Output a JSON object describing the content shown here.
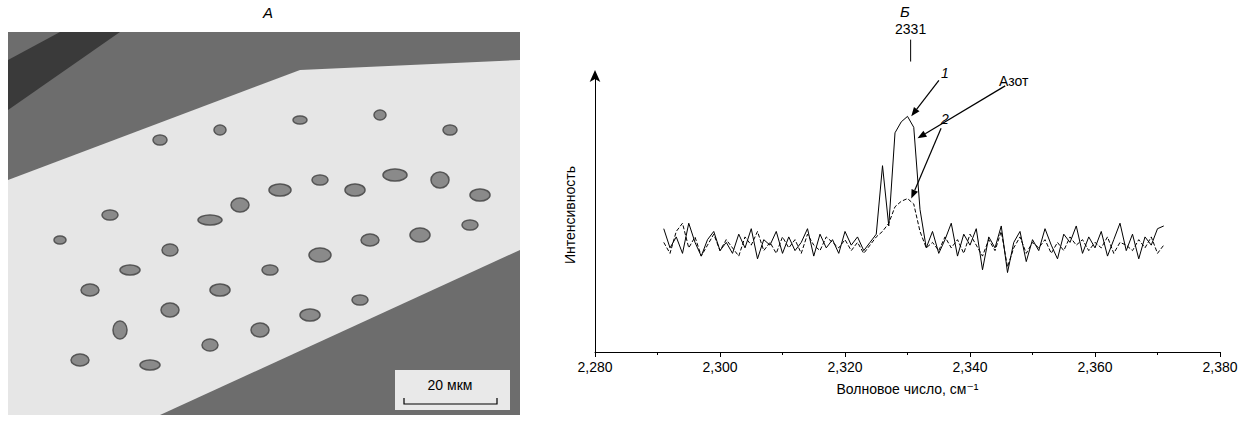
{
  "panel_a": {
    "letter": "А",
    "scale_bar": "20 мкм"
  },
  "chart_data": {
    "type": "line",
    "letter": "Б",
    "x_label": "Волновое число, см⁻¹",
    "y_label": "Интенсивность",
    "xlim": [
      2280,
      2380
    ],
    "xticks": [
      2280,
      2300,
      2320,
      2340,
      2360,
      2380
    ],
    "ylim": [
      0,
      100
    ],
    "tick_labels": "x",
    "grid": false,
    "x": [
      2291,
      2292,
      2293,
      2294,
      2295,
      2296,
      2297,
      2298,
      2299,
      2300,
      2301,
      2302,
      2303,
      2304,
      2305,
      2306,
      2307,
      2308,
      2309,
      2310,
      2311,
      2312,
      2313,
      2314,
      2315,
      2316,
      2317,
      2318,
      2319,
      2320,
      2321,
      2322,
      2323,
      2324,
      2325,
      2326,
      2327,
      2328,
      2329,
      2330,
      2331,
      2332,
      2333,
      2334,
      2335,
      2336,
      2337,
      2338,
      2339,
      2340,
      2341,
      2342,
      2343,
      2344,
      2345,
      2346,
      2347,
      2348,
      2349,
      2350,
      2351,
      2352,
      2353,
      2354,
      2355,
      2356,
      2357,
      2358,
      2359,
      2360,
      2361,
      2362,
      2363,
      2364,
      2365,
      2366,
      2367,
      2368,
      2369,
      2370,
      2371
    ],
    "series": [
      {
        "name": "1",
        "color": "#000000",
        "line_style": "solid",
        "values": [
          45,
          38,
          42,
          36,
          47,
          40,
          35,
          41,
          44,
          37,
          40,
          36,
          43,
          38,
          45,
          34,
          41,
          39,
          44,
          36,
          42,
          37,
          40,
          45,
          35,
          43,
          38,
          41,
          36,
          44,
          39,
          42,
          37,
          40,
          43,
          68,
          46,
          80,
          84,
          86,
          82,
          52,
          38,
          44,
          36,
          41,
          47,
          35,
          43,
          39,
          45,
          30,
          42,
          38,
          46,
          29,
          40,
          44,
          33,
          41,
          37,
          45,
          39,
          34,
          43,
          40,
          46,
          36,
          42,
          38,
          44,
          35,
          41,
          47,
          37,
          43,
          34,
          42,
          39,
          45,
          46
        ]
      },
      {
        "name": "2",
        "color": "#000000",
        "line_style": "dashed",
        "values": [
          40,
          36,
          44,
          47,
          38,
          42,
          35,
          39,
          43,
          37,
          41,
          38,
          35,
          42,
          39,
          44,
          37,
          40,
          36,
          42,
          38,
          41,
          36,
          43,
          39,
          37,
          42,
          40,
          38,
          41,
          37,
          40,
          36,
          39,
          42,
          44,
          47,
          53,
          55,
          56,
          54,
          44,
          38,
          40,
          37,
          42,
          38,
          41,
          36,
          43,
          39,
          35,
          41,
          37,
          44,
          31,
          38,
          42,
          36,
          40,
          38,
          41,
          36,
          40,
          37,
          42,
          39,
          41,
          37,
          40,
          38,
          42,
          36,
          40,
          39,
          37,
          41,
          38,
          42,
          36,
          39
        ]
      }
    ],
    "annotations": [
      {
        "text": "2331",
        "x": 2330.5,
        "y": 118,
        "tick": [
          114,
          106
        ]
      },
      {
        "text": "1",
        "x": 2336,
        "y": 102,
        "target": [
          2330.6,
          86
        ]
      },
      {
        "text": "Азот",
        "x": 2347,
        "y": 99,
        "target": [
          2331.6,
          78
        ]
      },
      {
        "text": "2",
        "x": 2336,
        "y": 85,
        "target": [
          2330.6,
          56
        ]
      }
    ]
  }
}
